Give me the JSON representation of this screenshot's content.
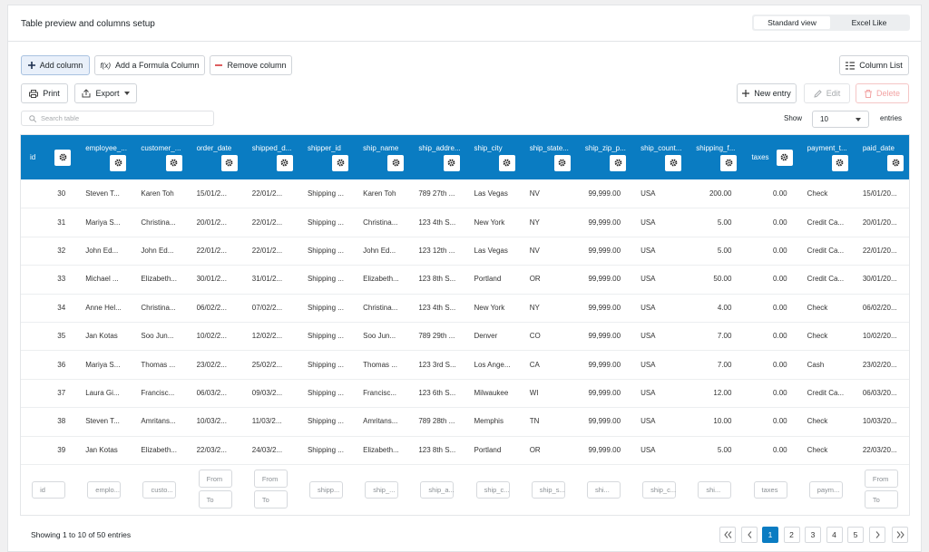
{
  "header": {
    "title": "Table preview and columns setup",
    "views": [
      "Standard view",
      "Excel Like"
    ]
  },
  "toolbar": {
    "add_column": "Add column",
    "formula_icon": "f(x)",
    "add_formula_column": "Add a Formula Column",
    "remove_column": "Remove column",
    "column_list": "Column List",
    "print": "Print",
    "export": "Export",
    "new_entry": "New entry",
    "edit": "Edit",
    "delete": "Delete",
    "search_placeholder": "Search table",
    "show": "Show",
    "page_size": "10",
    "entries": "entries"
  },
  "table": {
    "columns": [
      "id",
      "employee_...",
      "customer_...",
      "order_date",
      "shipped_d...",
      "shipper_id",
      "ship_name",
      "ship_addre...",
      "ship_city",
      "ship_state...",
      "ship_zip_p...",
      "ship_count...",
      "shipping_f...",
      "taxes",
      "payment_t...",
      "paid_date"
    ],
    "rows": [
      [
        "30",
        "Steven T...",
        "Karen Toh",
        "15/01/2...",
        "22/01/2...",
        "Shipping ...",
        "Karen Toh",
        "789 27th ...",
        "Las Vegas",
        "NV",
        "99,999.00",
        "USA",
        "200.00",
        "0.00",
        "Check",
        "15/01/20..."
      ],
      [
        "31",
        "Mariya S...",
        "Christina...",
        "20/01/2...",
        "22/01/2...",
        "Shipping ...",
        "Christina...",
        "123 4th S...",
        "New York",
        "NY",
        "99,999.00",
        "USA",
        "5.00",
        "0.00",
        "Credit Ca...",
        "20/01/20..."
      ],
      [
        "32",
        "John Ed...",
        "John Ed...",
        "22/01/2...",
        "22/01/2...",
        "Shipping ...",
        "John Ed...",
        "123 12th ...",
        "Las Vegas",
        "NV",
        "99,999.00",
        "USA",
        "5.00",
        "0.00",
        "Credit Ca...",
        "22/01/20..."
      ],
      [
        "33",
        "Michael ...",
        "Elizabeth...",
        "30/01/2...",
        "31/01/2...",
        "Shipping ...",
        "Elizabeth...",
        "123 8th S...",
        "Portland",
        "OR",
        "99,999.00",
        "USA",
        "50.00",
        "0.00",
        "Credit Ca...",
        "30/01/20..."
      ],
      [
        "34",
        "Anne Hel...",
        "Christina...",
        "06/02/2...",
        "07/02/2...",
        "Shipping ...",
        "Christina...",
        "123 4th S...",
        "New York",
        "NY",
        "99,999.00",
        "USA",
        "4.00",
        "0.00",
        "Check",
        "06/02/20..."
      ],
      [
        "35",
        "Jan Kotas",
        "Soo Jun...",
        "10/02/2...",
        "12/02/2...",
        "Shipping ...",
        "Soo Jun...",
        "789 29th ...",
        "Denver",
        "CO",
        "99,999.00",
        "USA",
        "7.00",
        "0.00",
        "Check",
        "10/02/20..."
      ],
      [
        "36",
        "Mariya S...",
        "Thomas ...",
        "23/02/2...",
        "25/02/2...",
        "Shipping ...",
        "Thomas ...",
        "123 3rd S...",
        "Los Ange...",
        "CA",
        "99,999.00",
        "USA",
        "7.00",
        "0.00",
        "Cash",
        "23/02/20..."
      ],
      [
        "37",
        "Laura Gi...",
        "Francisc...",
        "06/03/2...",
        "09/03/2...",
        "Shipping ...",
        "Francisc...",
        "123 6th S...",
        "Milwaukee",
        "WI",
        "99,999.00",
        "USA",
        "12.00",
        "0.00",
        "Credit Ca...",
        "06/03/20..."
      ],
      [
        "38",
        "Steven T...",
        "Amritans...",
        "10/03/2...",
        "11/03/2...",
        "Shipping ...",
        "Amritans...",
        "789 28th ...",
        "Memphis",
        "TN",
        "99,999.00",
        "USA",
        "10.00",
        "0.00",
        "Check",
        "10/03/20..."
      ],
      [
        "39",
        "Jan Kotas",
        "Elizabeth...",
        "22/03/2...",
        "24/03/2...",
        "Shipping ...",
        "Elizabeth...",
        "123 8th S...",
        "Portland",
        "OR",
        "99,999.00",
        "USA",
        "5.00",
        "0.00",
        "Check",
        "22/03/20..."
      ]
    ],
    "filters": [
      [
        "id"
      ],
      [
        "emplo..."
      ],
      [
        "custo..."
      ],
      [
        "From",
        "To"
      ],
      [
        "From",
        "To"
      ],
      [
        "shipp..."
      ],
      [
        "ship_..."
      ],
      [
        "ship_a..."
      ],
      [
        "ship_c..."
      ],
      [
        "ship_s..."
      ],
      [
        "shi..."
      ],
      [
        "ship_c..."
      ],
      [
        "shi..."
      ],
      [
        "taxes"
      ],
      [
        "paym..."
      ],
      [
        "From",
        "To"
      ]
    ]
  },
  "footer": {
    "info": "Showing 1 to 10 of 50 entries",
    "pages": [
      "1",
      "2",
      "3",
      "4",
      "5"
    ]
  }
}
